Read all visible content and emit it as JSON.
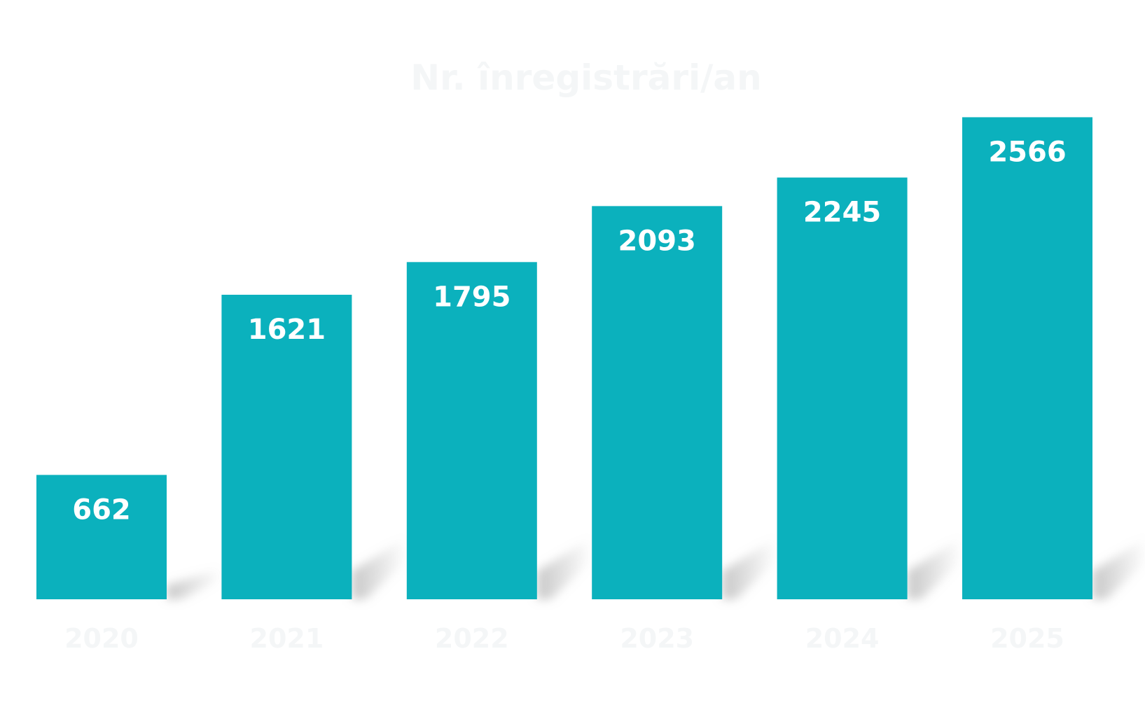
{
  "colors": {
    "bar": "#0bb1bd",
    "data_label": "#ffffff",
    "faint_text": "#f4f6f7",
    "shadow": "#9a9a9a",
    "background": "#ffffff"
  },
  "chart_data": {
    "type": "bar",
    "title": "Nr. înregistrări/an",
    "categories": [
      "2020",
      "2021",
      "2022",
      "2023",
      "2024",
      "2025"
    ],
    "values": [
      662,
      1621,
      1795,
      2093,
      2245,
      2566
    ],
    "xlabel": "",
    "ylabel": "",
    "ylim": [
      0,
      3190
    ],
    "grid": false,
    "legend": "none",
    "data_labels": "inside-top"
  }
}
